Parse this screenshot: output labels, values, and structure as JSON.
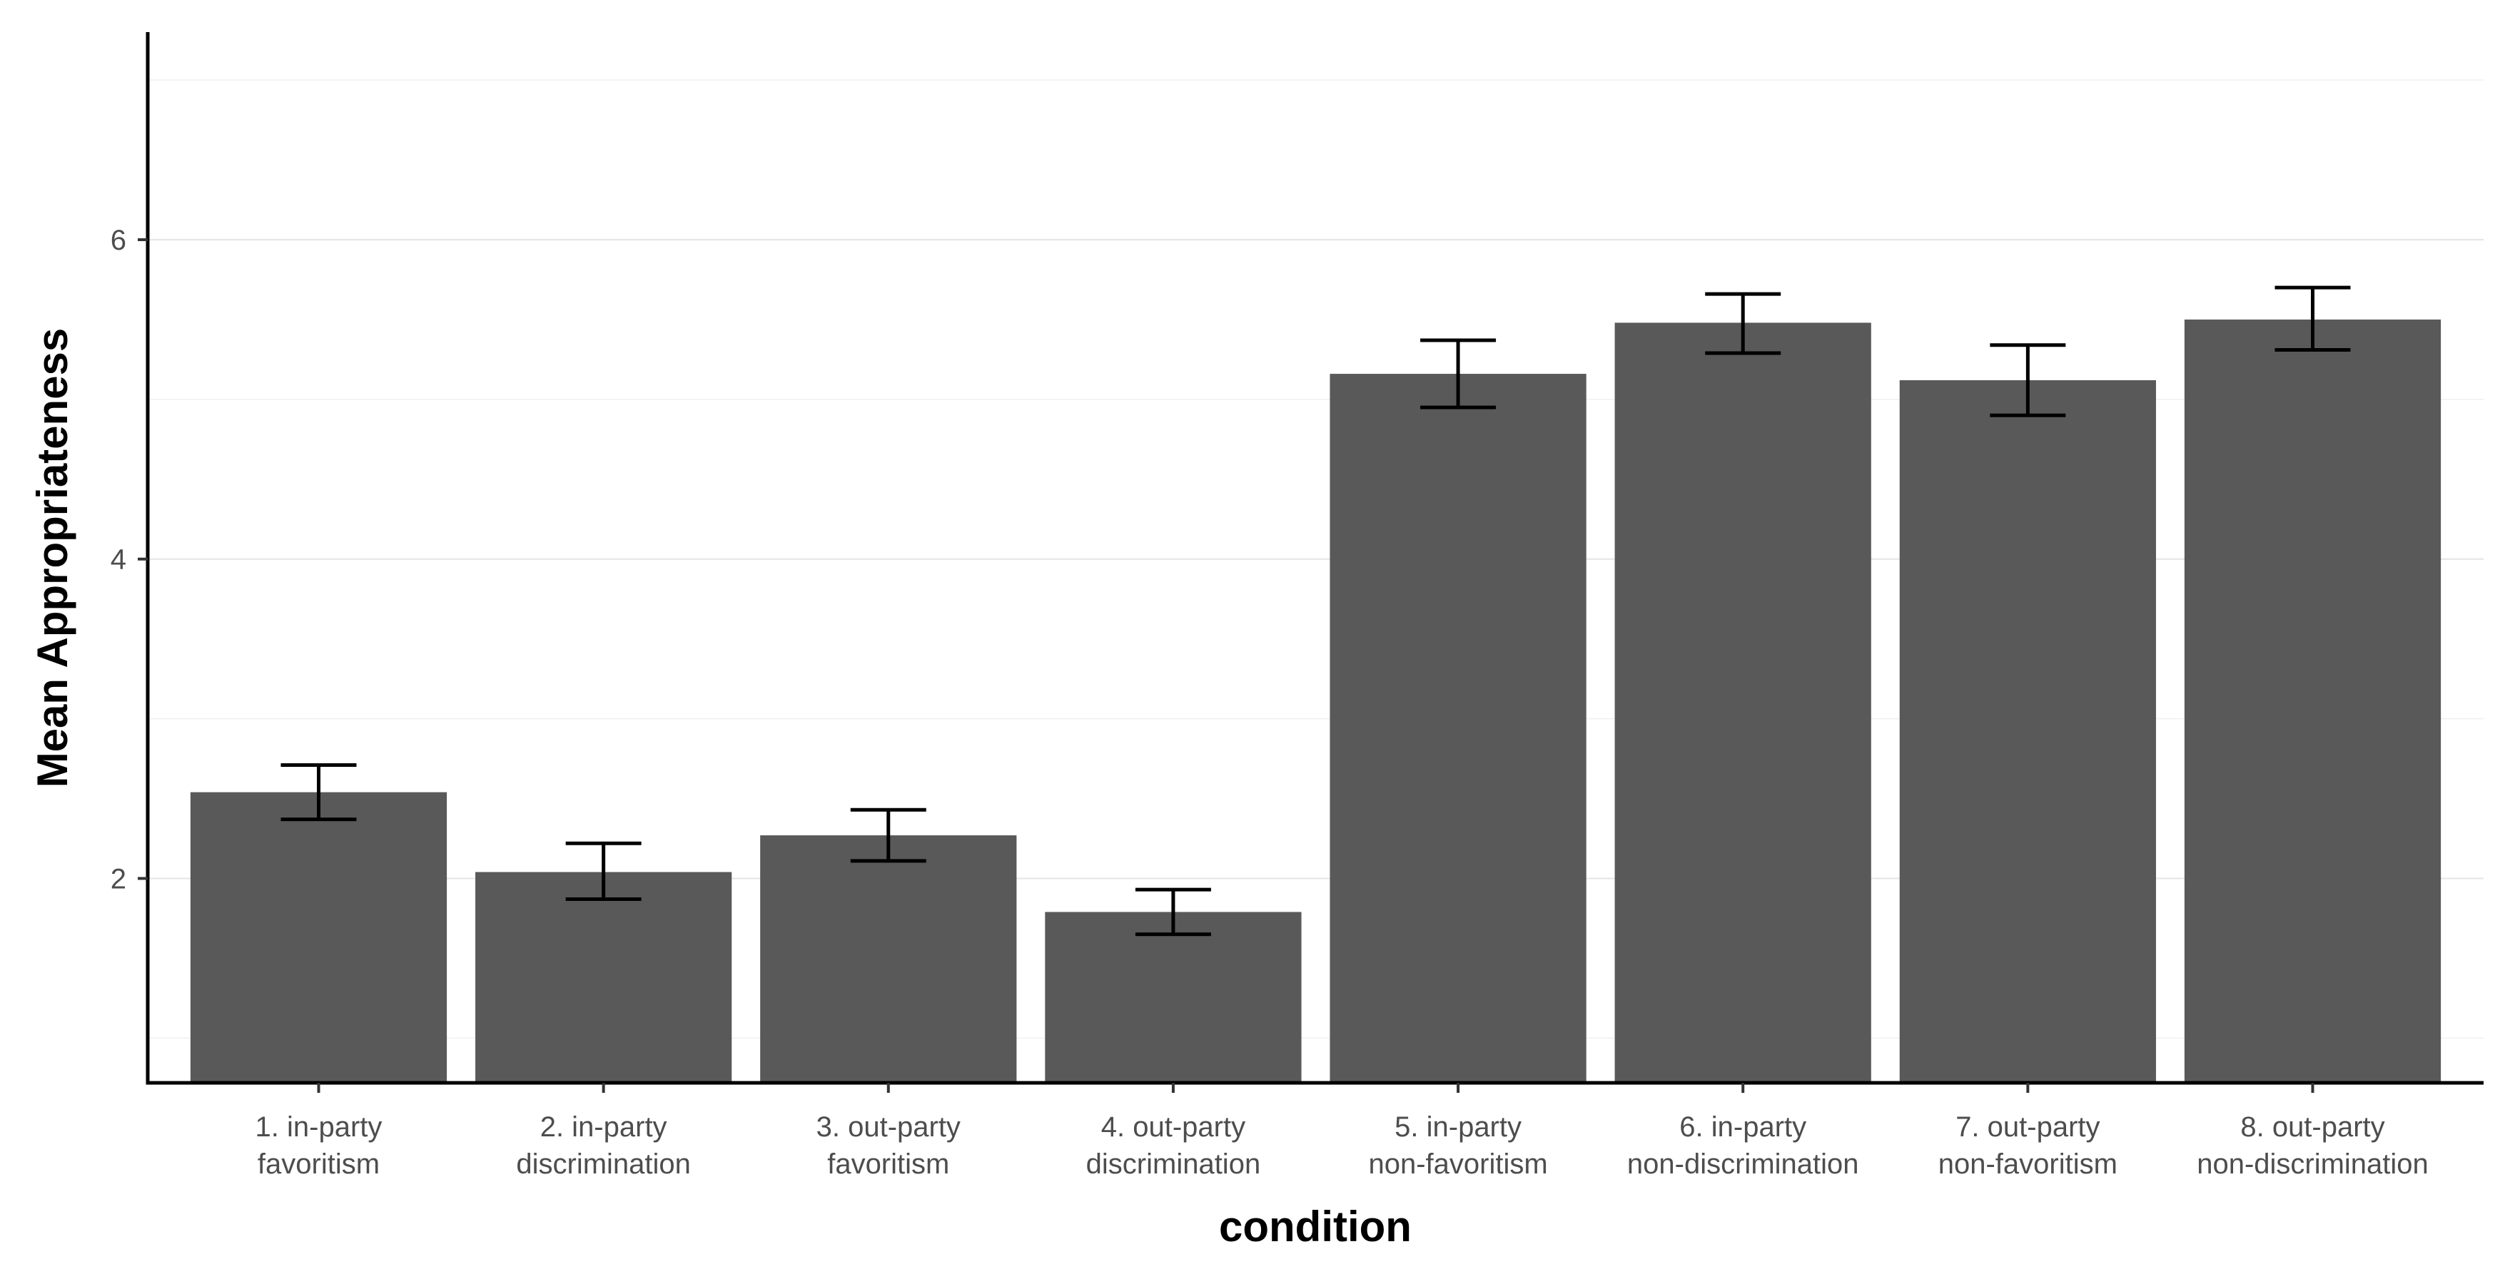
{
  "chart_data": {
    "type": "bar",
    "xlabel": "condition",
    "ylabel": "Mean Appropriateness",
    "categories": [
      [
        "1. in-party",
        "favoritism"
      ],
      [
        "2. in-party",
        "discrimination"
      ],
      [
        "3. out-party",
        "favoritism"
      ],
      [
        "4. out-party",
        "discrimination"
      ],
      [
        "5. in-party",
        "non-favoritism"
      ],
      [
        "6. in-party",
        "non-discrimination"
      ],
      [
        "7. out-party",
        "non-favoritism"
      ],
      [
        "8. out-party",
        "non-discrimination"
      ]
    ],
    "values": [
      2.54,
      2.04,
      2.27,
      1.79,
      5.16,
      5.48,
      5.12,
      5.5
    ],
    "error_low": [
      2.37,
      1.87,
      2.11,
      1.65,
      4.95,
      5.29,
      4.9,
      5.31
    ],
    "error_high": [
      2.71,
      2.22,
      2.43,
      1.93,
      5.37,
      5.66,
      5.34,
      5.7
    ],
    "ylim": [
      0.72,
      7.3
    ],
    "yticks": [
      2,
      4,
      6
    ],
    "grid": true,
    "legend": "none",
    "bar_color": "#595959",
    "error_bar_color": "#000000"
  }
}
